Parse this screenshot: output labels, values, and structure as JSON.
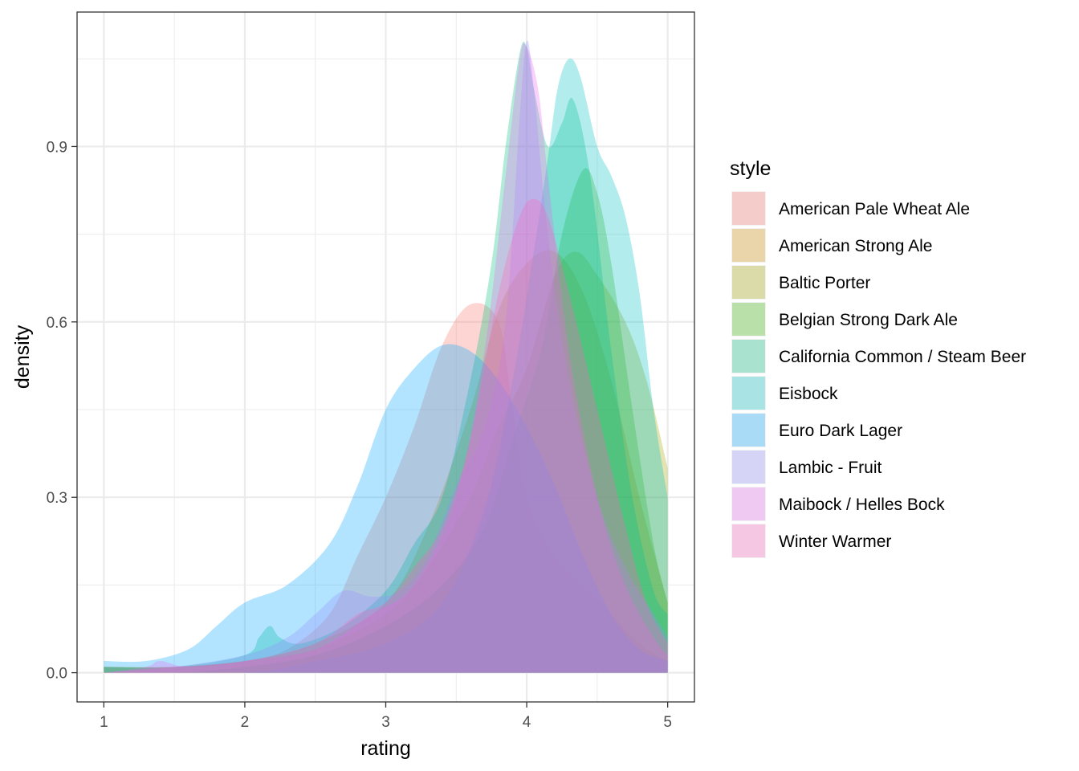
{
  "chart_data": {
    "type": "area",
    "subtype": "density",
    "xlabel": "rating",
    "ylabel": "density",
    "xlim": [
      0.81,
      5.19
    ],
    "ylim": [
      -0.05,
      1.13
    ],
    "x_ticks": [
      1,
      2,
      3,
      4,
      5
    ],
    "x_tick_labels": [
      "1",
      "2",
      "3",
      "4",
      "5"
    ],
    "y_ticks": [
      0.0,
      0.3,
      0.6,
      0.9
    ],
    "y_tick_labels": [
      "0.0",
      "0.3",
      "0.6",
      "0.9"
    ],
    "grid": true,
    "fill_opacity": 0.3,
    "legend": {
      "title": "style",
      "position": "right"
    },
    "series": [
      {
        "name": "American Pale Wheat Ale",
        "color": "#F8766D",
        "points": [
          [
            1,
            0.01
          ],
          [
            1.5,
            0.01
          ],
          [
            2,
            0.02
          ],
          [
            2.3,
            0.04
          ],
          [
            2.6,
            0.1
          ],
          [
            2.8,
            0.2
          ],
          [
            3,
            0.3
          ],
          [
            3.2,
            0.42
          ],
          [
            3.4,
            0.56
          ],
          [
            3.6,
            0.63
          ],
          [
            3.8,
            0.6
          ],
          [
            3.9,
            0.45
          ],
          [
            4,
            0.3
          ],
          [
            4.2,
            0.2
          ],
          [
            4.4,
            0.15
          ],
          [
            4.6,
            0.1
          ],
          [
            4.8,
            0.05
          ],
          [
            5,
            0.02
          ]
        ]
      },
      {
        "name": "American Strong Ale",
        "color": "#D89000",
        "points": [
          [
            1,
            0.01
          ],
          [
            1.5,
            0.01
          ],
          [
            2,
            0.02
          ],
          [
            2.5,
            0.05
          ],
          [
            3,
            0.12
          ],
          [
            3.3,
            0.25
          ],
          [
            3.6,
            0.45
          ],
          [
            3.8,
            0.62
          ],
          [
            4,
            0.7
          ],
          [
            4.2,
            0.72
          ],
          [
            4.4,
            0.65
          ],
          [
            4.6,
            0.5
          ],
          [
            4.8,
            0.3
          ],
          [
            5,
            0.12
          ]
        ]
      },
      {
        "name": "Baltic Porter",
        "color": "#A3A500",
        "points": [
          [
            1,
            0.01
          ],
          [
            1.5,
            0.01
          ],
          [
            2,
            0.02
          ],
          [
            2.5,
            0.04
          ],
          [
            3,
            0.1
          ],
          [
            3.3,
            0.18
          ],
          [
            3.6,
            0.3
          ],
          [
            3.8,
            0.42
          ],
          [
            4,
            0.52
          ],
          [
            4.2,
            0.68
          ],
          [
            4.35,
            0.72
          ],
          [
            4.5,
            0.68
          ],
          [
            4.7,
            0.6
          ],
          [
            4.85,
            0.5
          ],
          [
            5,
            0.35
          ]
        ]
      },
      {
        "name": "Belgian Strong Dark Ale",
        "color": "#39B600",
        "points": [
          [
            1,
            0.0
          ],
          [
            1.5,
            0.0
          ],
          [
            2,
            0.01
          ],
          [
            2.5,
            0.03
          ],
          [
            3,
            0.08
          ],
          [
            3.4,
            0.15
          ],
          [
            3.7,
            0.25
          ],
          [
            3.9,
            0.4
          ],
          [
            4.1,
            0.55
          ],
          [
            4.25,
            0.75
          ],
          [
            4.4,
            0.86
          ],
          [
            4.5,
            0.82
          ],
          [
            4.6,
            0.7
          ],
          [
            4.75,
            0.45
          ],
          [
            4.9,
            0.22
          ],
          [
            5,
            0.12
          ]
        ]
      },
      {
        "name": "California Common / Steam Beer",
        "color": "#00BF7D",
        "points": [
          [
            1,
            0.01
          ],
          [
            1.5,
            0.01
          ],
          [
            2,
            0.03
          ],
          [
            2.1,
            0.06
          ],
          [
            2.18,
            0.08
          ],
          [
            2.25,
            0.06
          ],
          [
            2.4,
            0.05
          ],
          [
            2.7,
            0.08
          ],
          [
            3,
            0.14
          ],
          [
            3.2,
            0.22
          ],
          [
            3.4,
            0.3
          ],
          [
            3.6,
            0.5
          ],
          [
            3.75,
            0.7
          ],
          [
            3.85,
            0.9
          ],
          [
            3.95,
            1.06
          ],
          [
            4.0,
            1.07
          ],
          [
            4.05,
            1.0
          ],
          [
            4.15,
            0.9
          ],
          [
            4.25,
            0.94
          ],
          [
            4.33,
            0.98
          ],
          [
            4.45,
            0.85
          ],
          [
            4.6,
            0.55
          ],
          [
            4.75,
            0.3
          ],
          [
            4.9,
            0.14
          ],
          [
            5,
            0.1
          ]
        ]
      },
      {
        "name": "Eisbock",
        "color": "#00BFC4",
        "points": [
          [
            1,
            0.0
          ],
          [
            2,
            0.0
          ],
          [
            2.5,
            0.02
          ],
          [
            3,
            0.05
          ],
          [
            3.4,
            0.12
          ],
          [
            3.7,
            0.28
          ],
          [
            3.9,
            0.5
          ],
          [
            4.05,
            0.72
          ],
          [
            4.15,
            0.88
          ],
          [
            4.22,
            1.0
          ],
          [
            4.3,
            1.05
          ],
          [
            4.38,
            1.02
          ],
          [
            4.5,
            0.9
          ],
          [
            4.6,
            0.85
          ],
          [
            4.7,
            0.78
          ],
          [
            4.8,
            0.65
          ],
          [
            4.9,
            0.45
          ],
          [
            5,
            0.3
          ]
        ]
      },
      {
        "name": "Euro Dark Lager",
        "color": "#00A5FF",
        "points": [
          [
            1,
            0.02
          ],
          [
            1.3,
            0.02
          ],
          [
            1.6,
            0.04
          ],
          [
            1.8,
            0.08
          ],
          [
            2,
            0.12
          ],
          [
            2.3,
            0.15
          ],
          [
            2.6,
            0.22
          ],
          [
            2.8,
            0.32
          ],
          [
            3,
            0.45
          ],
          [
            3.2,
            0.52
          ],
          [
            3.4,
            0.56
          ],
          [
            3.6,
            0.55
          ],
          [
            3.8,
            0.5
          ],
          [
            4,
            0.42
          ],
          [
            4.2,
            0.32
          ],
          [
            4.4,
            0.2
          ],
          [
            4.6,
            0.1
          ],
          [
            4.8,
            0.04
          ],
          [
            5,
            0.02
          ]
        ]
      },
      {
        "name": "Lambic - Fruit",
        "color": "#9590FF",
        "points": [
          [
            1,
            0.0
          ],
          [
            1.5,
            0.01
          ],
          [
            2,
            0.03
          ],
          [
            2.3,
            0.06
          ],
          [
            2.5,
            0.1
          ],
          [
            2.7,
            0.14
          ],
          [
            2.9,
            0.13
          ],
          [
            3.1,
            0.14
          ],
          [
            3.3,
            0.2
          ],
          [
            3.5,
            0.32
          ],
          [
            3.7,
            0.42
          ],
          [
            3.85,
            0.6
          ],
          [
            3.95,
            0.95
          ],
          [
            4.0,
            1.08
          ],
          [
            4.05,
            1.0
          ],
          [
            4.15,
            0.75
          ],
          [
            4.3,
            0.5
          ],
          [
            4.5,
            0.3
          ],
          [
            4.7,
            0.18
          ],
          [
            4.9,
            0.1
          ],
          [
            5,
            0.06
          ]
        ]
      },
      {
        "name": "Maibock / Helles Bock",
        "color": "#E76BF3",
        "points": [
          [
            1,
            0.0
          ],
          [
            1.3,
            0.01
          ],
          [
            1.4,
            0.02
          ],
          [
            1.6,
            0.01
          ],
          [
            2,
            0.02
          ],
          [
            2.5,
            0.04
          ],
          [
            2.9,
            0.1
          ],
          [
            3.2,
            0.15
          ],
          [
            3.5,
            0.3
          ],
          [
            3.7,
            0.55
          ],
          [
            3.85,
            0.85
          ],
          [
            3.95,
            1.05
          ],
          [
            4.0,
            1.07
          ],
          [
            4.08,
            1.0
          ],
          [
            4.15,
            0.85
          ],
          [
            4.3,
            0.55
          ],
          [
            4.5,
            0.3
          ],
          [
            4.7,
            0.15
          ],
          [
            4.9,
            0.06
          ],
          [
            5,
            0.03
          ]
        ]
      },
      {
        "name": "Winter Warmer",
        "color": "#FF62BC",
        "points": [
          [
            1,
            0.0
          ],
          [
            1.5,
            0.01
          ],
          [
            2,
            0.02
          ],
          [
            2.5,
            0.05
          ],
          [
            2.8,
            0.1
          ],
          [
            3,
            0.12
          ],
          [
            3.2,
            0.18
          ],
          [
            3.4,
            0.25
          ],
          [
            3.6,
            0.4
          ],
          [
            3.8,
            0.65
          ],
          [
            3.95,
            0.78
          ],
          [
            4.05,
            0.81
          ],
          [
            4.15,
            0.78
          ],
          [
            4.3,
            0.65
          ],
          [
            4.5,
            0.45
          ],
          [
            4.7,
            0.25
          ],
          [
            4.85,
            0.12
          ],
          [
            5,
            0.05
          ]
        ]
      }
    ]
  }
}
